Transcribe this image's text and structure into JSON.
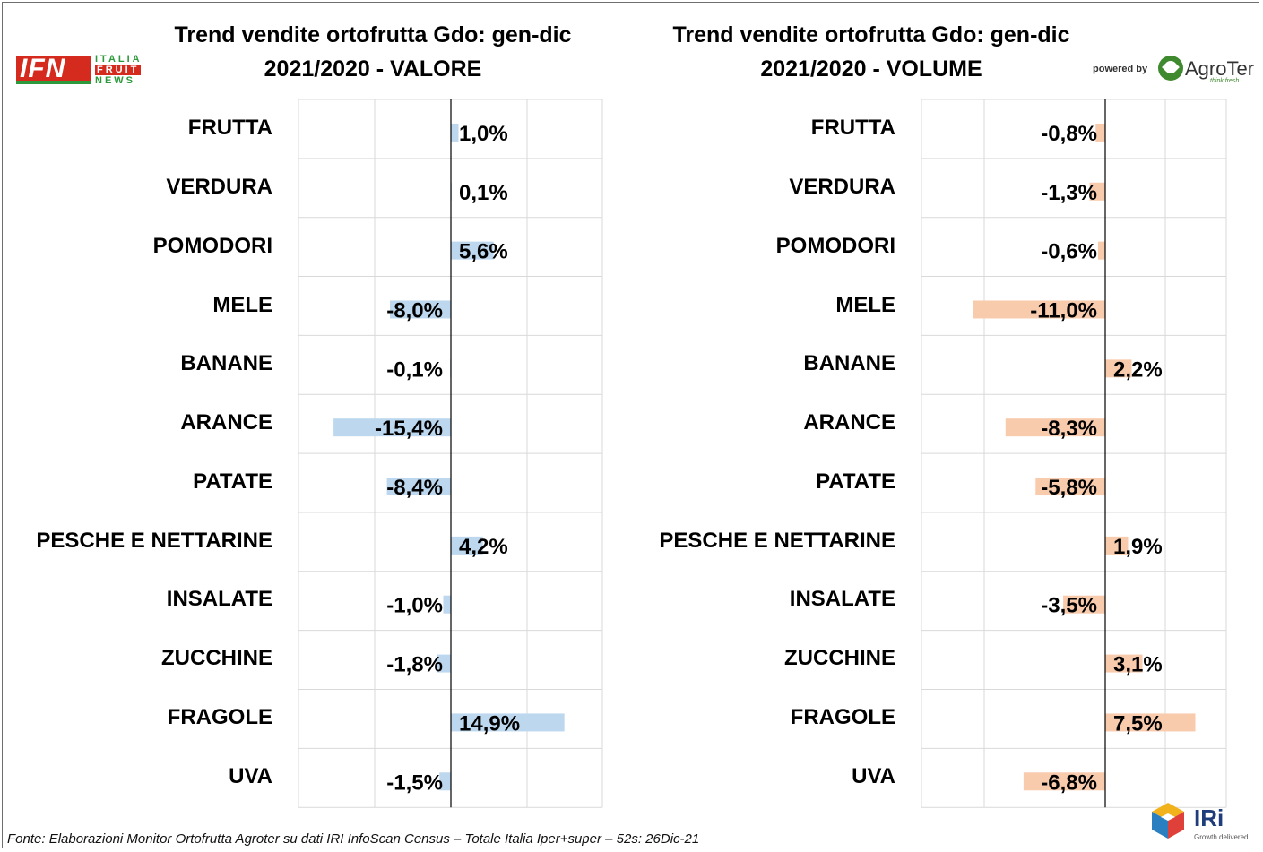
{
  "chart_data": [
    {
      "type": "bar",
      "orientation": "horizontal",
      "title": [
        "Trend vendite ortofrutta Gdo: gen-dic",
        "2021/2020 - VALORE"
      ],
      "categories": [
        "FRUTTA",
        "VERDURA",
        "POMODORI",
        "MELE",
        "BANANE",
        "ARANCE",
        "PATATE",
        "PESCHE E NETTARINE",
        "INSALATE",
        "ZUCCHINE",
        "FRAGOLE",
        "UVA"
      ],
      "values": [
        1.0,
        0.1,
        5.6,
        -8.0,
        -0.1,
        -15.4,
        -8.4,
        4.2,
        -1.0,
        -1.8,
        14.9,
        -1.5
      ],
      "labels": [
        "1,0%",
        "0,1%",
        "5,6%",
        "-8,0%",
        "-0,1%",
        "-15,4%",
        "-8,4%",
        "4,2%",
        "-1,0%",
        "-1,8%",
        "14,9%",
        "-1,5%"
      ],
      "bar_color": "#bdd7ee",
      "unit": "%",
      "grid": true
    },
    {
      "type": "bar",
      "orientation": "horizontal",
      "title": [
        "Trend vendite ortofrutta Gdo: gen-dic",
        "2021/2020 - VOLUME"
      ],
      "categories": [
        "FRUTTA",
        "VERDURA",
        "POMODORI",
        "MELE",
        "BANANE",
        "ARANCE",
        "PATATE",
        "PESCHE E NETTARINE",
        "INSALATE",
        "ZUCCHINE",
        "FRAGOLE",
        "UVA"
      ],
      "values": [
        -0.8,
        -1.3,
        -0.6,
        -11.0,
        2.2,
        -8.3,
        -5.8,
        1.9,
        -3.5,
        3.1,
        7.5,
        -6.8
      ],
      "labels": [
        "-0,8%",
        "-1,3%",
        "-0,6%",
        "-11,0%",
        "2,2%",
        "-8,3%",
        "-5,8%",
        "1,9%",
        "-3,5%",
        "3,1%",
        "7,5%",
        "-6,8%"
      ],
      "bar_color": "#f8cbad",
      "unit": "%",
      "grid": true
    }
  ],
  "logos": {
    "ifn": {
      "mark": "IFN",
      "lines": [
        "ITALIA",
        "FRUIT",
        "NEWS"
      ]
    },
    "agroter": {
      "powered": "powered by",
      "name": "AgroTer",
      "tagline": "think fresh"
    },
    "iri": {
      "name": "IRi",
      "tagline": "Growth delivered."
    }
  },
  "source": "Fonte: Elaborazioni Monitor Ortofrutta Agroter su dati IRI InfoScan Census – Totale Italia Iper+super – 52s: 26Dic-21"
}
